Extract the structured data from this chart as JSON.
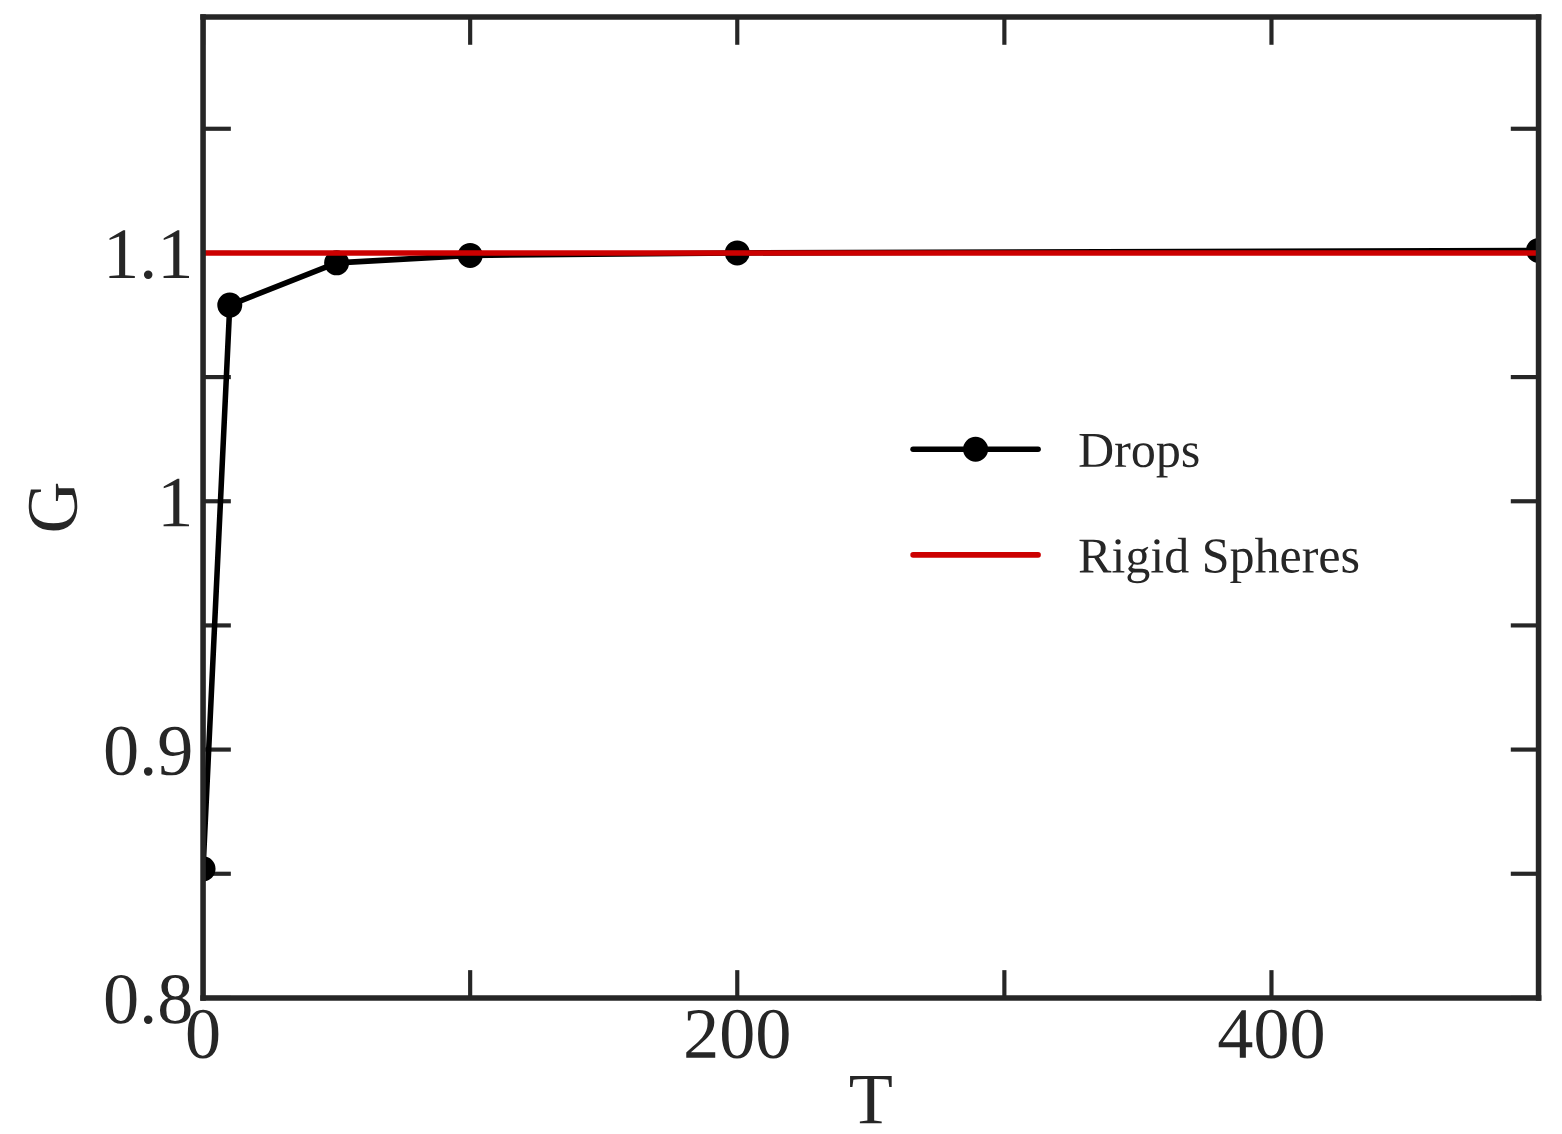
{
  "chart_data": {
    "type": "line",
    "xlabel": "T",
    "ylabel": "G",
    "xlim": [
      0,
      500
    ],
    "ylim": [
      0.8,
      1.195
    ],
    "xticks": [
      0,
      {
        "value": 100,
        "label": null
      },
      200,
      {
        "value": 300,
        "label": null
      },
      400
    ],
    "yticks": [
      0.8,
      {
        "value": 0.85,
        "label": null
      },
      0.9,
      {
        "value": 0.95,
        "label": null
      },
      1,
      {
        "value": 1.05,
        "label": null
      },
      1.1,
      {
        "value": 1.15,
        "label": null
      }
    ],
    "grid": false,
    "legend": "right",
    "series": [
      {
        "name": "Drops",
        "color": "#000000",
        "marker": "circle",
        "x": [
          0,
          10,
          50,
          100,
          200,
          500
        ],
        "values": [
          0.852,
          1.079,
          1.096,
          1.099,
          1.1,
          1.101
        ]
      },
      {
        "name": "Rigid Spheres",
        "color": "#cc0000",
        "marker": "none",
        "x": [
          0,
          500
        ],
        "values": [
          1.1,
          1.1
        ]
      }
    ]
  }
}
